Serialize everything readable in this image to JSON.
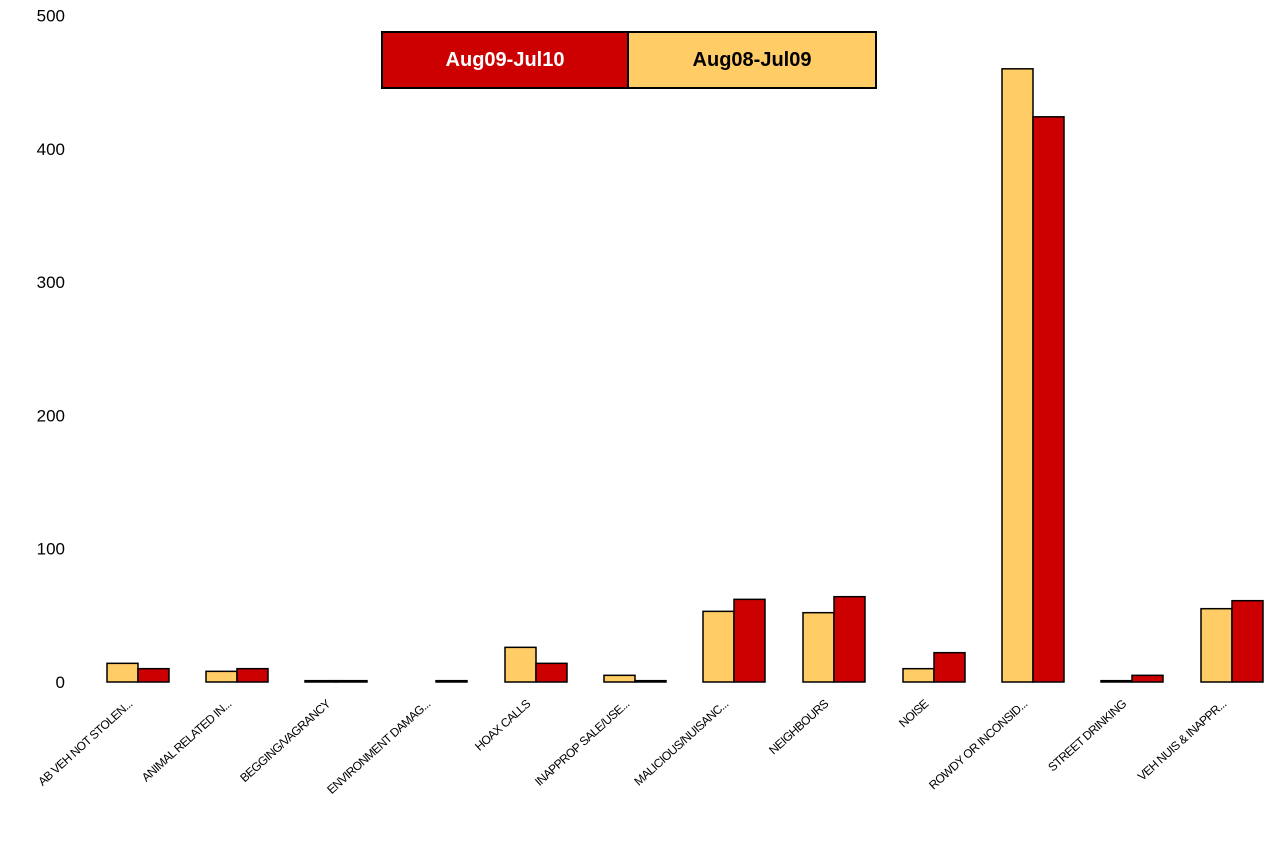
{
  "chart_data": {
    "type": "bar",
    "categories": [
      "AB VEH NOT STOLEN...",
      "ANIMAL RELATED IN...",
      "BEGGING/VAGRANCY",
      "ENVIRONMENT DAMAG...",
      "HOAX CALLS",
      "INAPPROP SALE/USE...",
      "MALICIOUS/NUISANC...",
      "NEIGHBOURS",
      "NOISE",
      "ROWDY OR INCONSID...",
      "STREET DRINKING",
      "VEH NUIS & INAPPR..."
    ],
    "series": [
      {
        "name": "Aug08-Jul09",
        "color": "#FFCC66",
        "values": [
          14,
          8,
          1,
          0,
          26,
          5,
          53,
          52,
          10,
          460,
          1,
          55
        ]
      },
      {
        "name": "Aug09-Jul10",
        "color": "#CC0000",
        "values": [
          10,
          10,
          1,
          1,
          14,
          1,
          62,
          64,
          22,
          424,
          5,
          61
        ]
      }
    ],
    "legend_order": [
      "Aug09-Jul10",
      "Aug08-Jul09"
    ],
    "yticks": [
      0,
      100,
      200,
      300,
      400,
      500
    ],
    "ylim": [
      0,
      500
    ],
    "grid": false,
    "legend_position": "top-center"
  }
}
